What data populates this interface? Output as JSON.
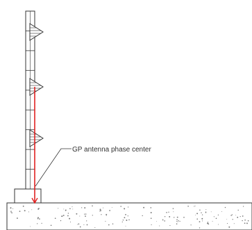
{
  "annotation": {
    "label": "GP antenna phase center"
  },
  "colors": {
    "background": "#ffffff",
    "line": "#333333",
    "highlight": "#e02020",
    "ground_speckle": "#777777"
  },
  "elements": {
    "mast_panels": 9,
    "antenna_count": 3
  }
}
